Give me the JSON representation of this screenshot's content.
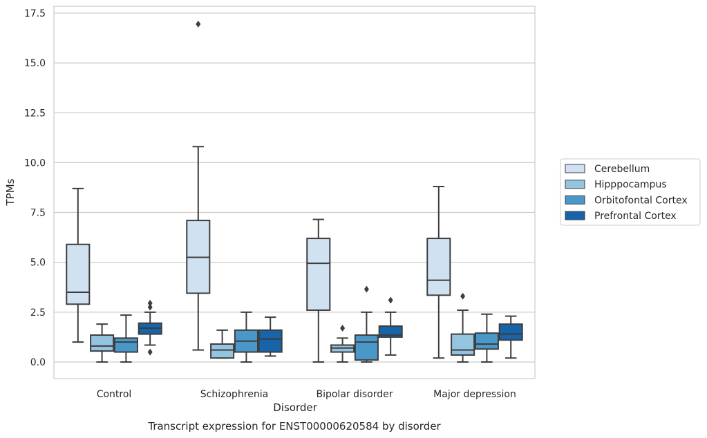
{
  "chart_data": {
    "type": "boxplot",
    "title": "Transcript expression for ENST00000620584 by disorder",
    "xlabel": "Disorder",
    "ylabel": "TPMs",
    "ylim": [
      -0.8,
      17.8
    ],
    "yticks": [
      "0.0",
      "2.5",
      "5.0",
      "7.5",
      "10.0",
      "12.5",
      "15.0",
      "17.5"
    ],
    "grid": "horizontal",
    "legend_position": "right",
    "categories": [
      "Control",
      "Schizophrenia",
      "Bipolar disorder",
      "Major depression"
    ],
    "series": [
      {
        "name": "Cerebellum",
        "color": "#d0e1f2",
        "boxes": [
          {
            "whislo": 1.0,
            "q1": 2.9,
            "med": 3.5,
            "q3": 5.9,
            "whishi": 8.7,
            "fliers": []
          },
          {
            "whislo": 0.6,
            "q1": 3.45,
            "med": 5.25,
            "q3": 7.1,
            "whishi": 10.8,
            "fliers": [
              16.95
            ]
          },
          {
            "whislo": 0.0,
            "q1": 2.6,
            "med": 4.95,
            "q3": 6.2,
            "whishi": 7.15,
            "fliers": []
          },
          {
            "whislo": 0.2,
            "q1": 3.35,
            "med": 4.1,
            "q3": 6.2,
            "whishi": 8.8,
            "fliers": []
          }
        ]
      },
      {
        "name": "Hipppocampus",
        "color": "#94c4df",
        "boxes": [
          {
            "whislo": 0.0,
            "q1": 0.55,
            "med": 0.8,
            "q3": 1.35,
            "whishi": 1.9,
            "fliers": []
          },
          {
            "whislo": 0.2,
            "q1": 0.2,
            "med": 0.6,
            "q3": 0.9,
            "whishi": 1.6,
            "fliers": []
          },
          {
            "whislo": 0.0,
            "q1": 0.5,
            "med": 0.7,
            "q3": 0.85,
            "whishi": 1.2,
            "fliers": [
              1.7
            ]
          },
          {
            "whislo": 0.0,
            "q1": 0.35,
            "med": 0.6,
            "q3": 1.4,
            "whishi": 2.6,
            "fliers": [
              3.3
            ]
          }
        ]
      },
      {
        "name": "Orbitofontal Cortex",
        "color": "#4a98c9",
        "boxes": [
          {
            "whislo": 0.0,
            "q1": 0.5,
            "med": 1.0,
            "q3": 1.2,
            "whishi": 2.35,
            "fliers": []
          },
          {
            "whislo": 0.0,
            "q1": 0.5,
            "med": 1.05,
            "q3": 1.6,
            "whishi": 2.5,
            "fliers": []
          },
          {
            "whislo": 0.0,
            "q1": 0.1,
            "med": 1.0,
            "q3": 1.35,
            "whishi": 2.5,
            "fliers": [
              3.65
            ]
          },
          {
            "whislo": 0.0,
            "q1": 0.65,
            "med": 0.9,
            "q3": 1.45,
            "whishi": 2.4,
            "fliers": []
          }
        ]
      },
      {
        "name": "Prefrontal Cortex",
        "color": "#1764ab",
        "boxes": [
          {
            "whislo": 0.85,
            "q1": 1.4,
            "med": 1.7,
            "q3": 1.95,
            "whishi": 2.5,
            "fliers": [
              2.75,
              2.95,
              0.5
            ]
          },
          {
            "whislo": 0.3,
            "q1": 0.5,
            "med": 1.15,
            "q3": 1.6,
            "whishi": 2.25,
            "fliers": []
          },
          {
            "whislo": 0.35,
            "q1": 1.25,
            "med": 1.35,
            "q3": 1.8,
            "whishi": 2.5,
            "fliers": [
              3.1
            ]
          },
          {
            "whislo": 0.2,
            "q1": 1.1,
            "med": 1.4,
            "q3": 1.9,
            "whishi": 2.3,
            "fliers": []
          }
        ]
      }
    ]
  }
}
